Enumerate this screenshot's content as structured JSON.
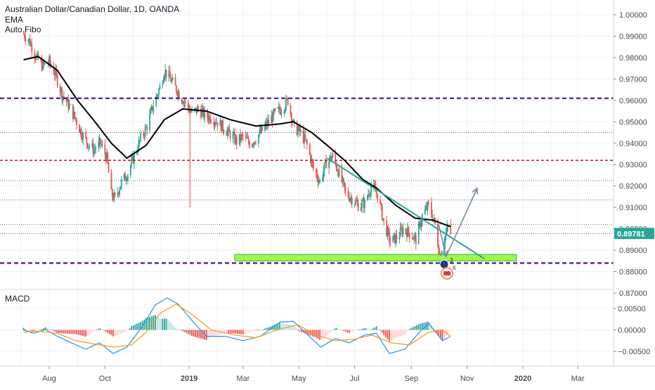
{
  "legend": {
    "symbol": "Australian Dollar/Canadian Dollar, 1D, OANDA",
    "indicator_1": "EMA",
    "indicator_2": "Auto Fibo"
  },
  "macd_label": "MACD",
  "current_price_label": "0.89781",
  "markers": {
    "marker_a": "3",
    "marker_b": "6"
  },
  "colors": {
    "up": "#26a69a",
    "down": "#ef5350",
    "ema": "#000000",
    "support_dash": "#4a148c",
    "red_dash": "#c62828",
    "trendline": "#26a69a",
    "zone": "#76ff03",
    "arrow": "#7a8aa0",
    "price_tag_bg": "#26a69a",
    "macd_line": "#2196f3",
    "signal_line": "#ff9800"
  },
  "chart_data": [
    {
      "type": "candlestick",
      "title": "Australian Dollar/Canadian Dollar, 1D, OANDA",
      "x_ticks": [
        "Aug",
        "Oct",
        "2019",
        "Mar",
        "May",
        "Jul",
        "Sep",
        "Nov",
        "2020",
        "Mar"
      ],
      "y_ticks": [
        "1.00000",
        "0.99000",
        "0.98000",
        "0.97000",
        "0.96000",
        "0.95000",
        "0.94000",
        "0.93000",
        "0.92000",
        "0.91000",
        "0.90000",
        "0.89000",
        "0.88000",
        "0.87000"
      ],
      "ylim": [
        0.8695,
        1.0035
      ],
      "current_price": 0.89781,
      "close_path": [
        [
          "2018-07-04",
          0.991
        ],
        [
          "2018-07-10",
          0.988
        ],
        [
          "2018-07-18",
          0.98
        ],
        [
          "2018-07-25",
          0.976
        ],
        [
          "2018-08-01",
          0.978
        ],
        [
          "2018-08-08",
          0.972
        ],
        [
          "2018-08-15",
          0.963
        ],
        [
          "2018-08-22",
          0.958
        ],
        [
          "2018-08-29",
          0.952
        ],
        [
          "2018-09-05",
          0.945
        ],
        [
          "2018-09-12",
          0.94
        ],
        [
          "2018-09-19",
          0.937
        ],
        [
          "2018-09-26",
          0.94
        ],
        [
          "2018-10-03",
          0.933
        ],
        [
          "2018-10-08",
          0.916
        ],
        [
          "2018-10-12",
          0.914
        ],
        [
          "2018-10-19",
          0.922
        ],
        [
          "2018-10-26",
          0.926
        ],
        [
          "2018-11-02",
          0.934
        ],
        [
          "2018-11-09",
          0.942
        ],
        [
          "2018-11-16",
          0.948
        ],
        [
          "2018-11-23",
          0.958
        ],
        [
          "2018-11-30",
          0.966
        ],
        [
          "2018-12-05",
          0.974
        ],
        [
          "2018-12-10",
          0.971
        ],
        [
          "2018-12-17",
          0.966
        ],
        [
          "2018-12-24",
          0.961
        ],
        [
          "2019-01-01",
          0.956
        ],
        [
          "2019-01-04",
          0.954
        ],
        [
          "2019-01-11",
          0.956
        ],
        [
          "2019-01-18",
          0.953
        ],
        [
          "2019-01-25",
          0.952
        ],
        [
          "2019-02-01",
          0.95
        ],
        [
          "2019-02-08",
          0.947
        ],
        [
          "2019-02-15",
          0.944
        ],
        [
          "2019-02-22",
          0.941
        ],
        [
          "2019-03-01",
          0.943
        ],
        [
          "2019-03-08",
          0.94
        ],
        [
          "2019-03-15",
          0.942
        ],
        [
          "2019-03-22",
          0.946
        ],
        [
          "2019-03-29",
          0.95
        ],
        [
          "2019-04-05",
          0.954
        ],
        [
          "2019-04-12",
          0.956
        ],
        [
          "2019-04-19",
          0.96
        ],
        [
          "2019-04-26",
          0.947
        ],
        [
          "2019-05-03",
          0.945
        ],
        [
          "2019-05-10",
          0.939
        ],
        [
          "2019-05-17",
          0.928
        ],
        [
          "2019-05-24",
          0.922
        ],
        [
          "2019-05-31",
          0.931
        ],
        [
          "2019-06-07",
          0.934
        ],
        [
          "2019-06-14",
          0.926
        ],
        [
          "2019-06-21",
          0.917
        ],
        [
          "2019-06-28",
          0.914
        ],
        [
          "2019-07-05",
          0.911
        ],
        [
          "2019-07-12",
          0.912
        ],
        [
          "2019-07-19",
          0.92
        ],
        [
          "2019-07-26",
          0.916
        ],
        [
          "2019-08-02",
          0.903
        ],
        [
          "2019-08-09",
          0.894
        ],
        [
          "2019-08-16",
          0.896
        ],
        [
          "2019-08-23",
          0.9
        ],
        [
          "2019-08-30",
          0.898
        ],
        [
          "2019-09-06",
          0.895
        ],
        [
          "2019-09-13",
          0.906
        ],
        [
          "2019-09-20",
          0.911
        ],
        [
          "2019-09-27",
          0.902
        ],
        [
          "2019-10-02",
          0.888
        ],
        [
          "2019-10-07",
          0.895
        ],
        [
          "2019-10-11",
          0.901
        ],
        [
          "2019-10-14",
          0.898
        ]
      ],
      "ema_path": [
        [
          "2018-07-04",
          0.979
        ],
        [
          "2018-07-20",
          0.9805
        ],
        [
          "2018-08-10",
          0.974
        ],
        [
          "2018-09-01",
          0.96
        ],
        [
          "2018-09-20",
          0.95
        ],
        [
          "2018-10-08",
          0.94
        ],
        [
          "2018-10-25",
          0.933
        ],
        [
          "2018-11-15",
          0.939
        ],
        [
          "2018-12-05",
          0.951
        ],
        [
          "2018-12-25",
          0.956
        ],
        [
          "2019-01-20",
          0.955
        ],
        [
          "2019-02-15",
          0.951
        ],
        [
          "2019-03-15",
          0.948
        ],
        [
          "2019-04-10",
          0.949
        ],
        [
          "2019-04-25",
          0.95
        ],
        [
          "2019-05-15",
          0.945
        ],
        [
          "2019-06-01",
          0.939
        ],
        [
          "2019-06-20",
          0.932
        ],
        [
          "2019-07-10",
          0.923
        ],
        [
          "2019-07-25",
          0.919
        ],
        [
          "2019-08-15",
          0.911
        ],
        [
          "2019-09-05",
          0.905
        ],
        [
          "2019-09-25",
          0.904
        ],
        [
          "2019-10-14",
          0.901
        ]
      ],
      "horizontal_levels": [
        {
          "price": 0.961,
          "style": "purple-dashed"
        },
        {
          "price": 0.932,
          "style": "red-dashed"
        },
        {
          "price": 0.884,
          "style": "purple-dashed"
        },
        {
          "price": 0.945,
          "style": "fibo"
        },
        {
          "price": 0.9225,
          "style": "fibo"
        },
        {
          "price": 0.9135,
          "style": "fibo"
        },
        {
          "price": 0.902,
          "style": "fibo"
        },
        {
          "price": 0.8978,
          "style": "fibo"
        }
      ],
      "support_zone": {
        "x": [
          "2019-02-20",
          "2019-12-25"
        ],
        "y": [
          0.885,
          0.888
        ]
      },
      "trendline": {
        "x": [
          "2019-06-01",
          "2019-11-20"
        ],
        "y": [
          0.933,
          0.886
        ]
      },
      "arrows": [
        {
          "x": [
            "2019-10-01",
            "2019-10-09"
          ],
          "y": [
            0.902,
            0.887
          ]
        },
        {
          "x": [
            "2019-10-09",
            "2019-11-12"
          ],
          "y": [
            0.887,
            0.919
          ]
        }
      ]
    },
    {
      "type": "macd",
      "title": "MACD",
      "y_ticks": [
        "0.00500",
        "0.00000",
        "−0.00500"
      ],
      "ylim": [
        -0.0095,
        0.0092
      ],
      "macd_path": [
        [
          "2018-07-04",
          0.0
        ],
        [
          "2018-07-15",
          -0.0008
        ],
        [
          "2018-07-28",
          0.0001
        ],
        [
          "2018-08-10",
          -0.0015
        ],
        [
          "2018-08-25",
          -0.003
        ],
        [
          "2018-09-10",
          -0.0045
        ],
        [
          "2018-09-25",
          -0.003
        ],
        [
          "2018-10-10",
          -0.0055
        ],
        [
          "2018-10-25",
          -0.004
        ],
        [
          "2018-11-10",
          0.0005
        ],
        [
          "2018-11-25",
          0.0058
        ],
        [
          "2018-12-08",
          0.0075
        ],
        [
          "2018-12-20",
          0.006
        ],
        [
          "2019-01-05",
          0.002
        ],
        [
          "2019-01-20",
          -0.0015
        ],
        [
          "2019-02-10",
          -0.0015
        ],
        [
          "2019-03-01",
          -0.0025
        ],
        [
          "2019-03-20",
          -0.0015
        ],
        [
          "2019-04-10",
          0.0018
        ],
        [
          "2019-04-25",
          0.002
        ],
        [
          "2019-05-10",
          -0.001
        ],
        [
          "2019-05-25",
          -0.004
        ],
        [
          "2019-06-10",
          -0.002
        ],
        [
          "2019-06-25",
          -0.003
        ],
        [
          "2019-07-12",
          -0.0012
        ],
        [
          "2019-07-25",
          -0.0008
        ],
        [
          "2019-08-08",
          -0.0055
        ],
        [
          "2019-08-25",
          -0.0045
        ],
        [
          "2019-09-10",
          -0.0005
        ],
        [
          "2019-09-20",
          0.0015
        ],
        [
          "2019-10-05",
          -0.0025
        ],
        [
          "2019-10-14",
          -0.0015
        ]
      ],
      "signal_path": [
        [
          "2018-07-04",
          -0.0005
        ],
        [
          "2018-07-20",
          -0.0003
        ],
        [
          "2018-08-10",
          -0.0008
        ],
        [
          "2018-08-30",
          -0.0025
        ],
        [
          "2018-09-20",
          -0.0033
        ],
        [
          "2018-10-10",
          -0.004
        ],
        [
          "2018-10-30",
          -0.0035
        ],
        [
          "2018-11-15",
          -0.0005
        ],
        [
          "2018-12-01",
          0.004
        ],
        [
          "2018-12-18",
          0.006
        ],
        [
          "2019-01-05",
          0.0035
        ],
        [
          "2019-01-25",
          0.0
        ],
        [
          "2019-02-20",
          -0.0012
        ],
        [
          "2019-03-15",
          -0.0018
        ],
        [
          "2019-04-10",
          0.0002
        ],
        [
          "2019-04-30",
          0.0012
        ],
        [
          "2019-05-20",
          -0.0012
        ],
        [
          "2019-06-10",
          -0.0025
        ],
        [
          "2019-06-30",
          -0.0022
        ],
        [
          "2019-07-20",
          -0.0012
        ],
        [
          "2019-08-10",
          -0.003
        ],
        [
          "2019-08-30",
          -0.0035
        ],
        [
          "2019-09-20",
          -0.0005
        ],
        [
          "2019-10-05",
          0.0
        ],
        [
          "2019-10-14",
          -0.0015
        ]
      ]
    }
  ]
}
